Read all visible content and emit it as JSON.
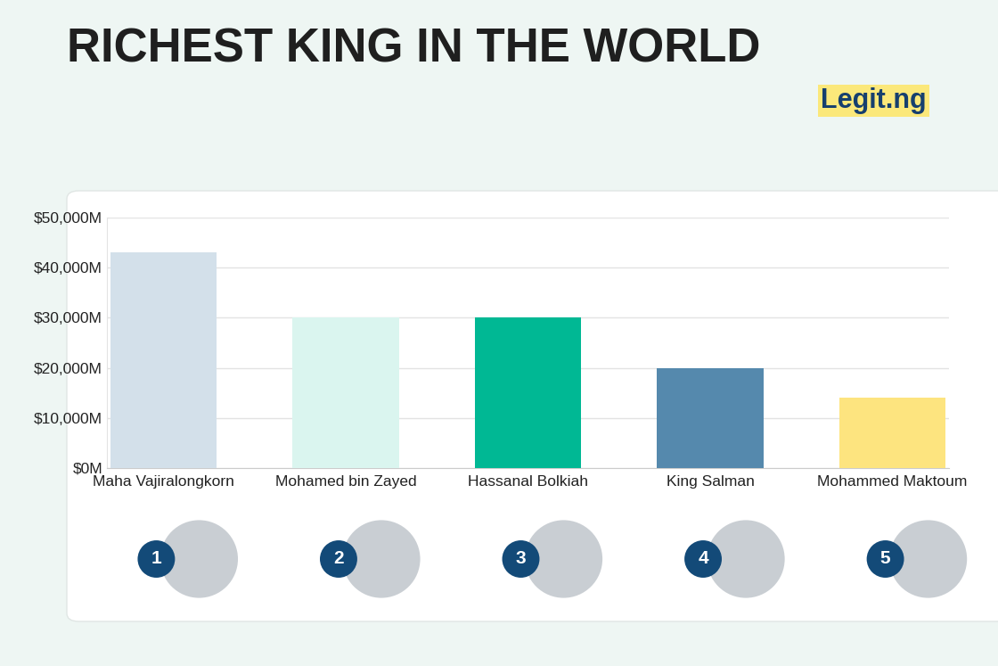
{
  "chart_data": {
    "type": "bar",
    "title": "RICHEST KING IN THE WORLD",
    "annotations": [
      "Legit.ng"
    ],
    "categories": [
      "Maha Vajiralongkorn",
      "Mohamed bin Zayed",
      "Hassanal Bolkiah",
      "King Salman",
      "Mohammed Maktoum"
    ],
    "values": [
      43000,
      30000,
      30000,
      20000,
      14000
    ],
    "ranks": [
      1,
      2,
      3,
      4,
      5
    ],
    "colors": [
      "#d3e0ea",
      "#daf5ef",
      "#00b894",
      "#5589ad",
      "#fde47f"
    ],
    "ylim": [
      0,
      50000
    ],
    "yticks": [
      {
        "value": 0,
        "label": "$0M"
      },
      {
        "value": 10000,
        "label": "$10,000M"
      },
      {
        "value": 20000,
        "label": "$20,000M"
      },
      {
        "value": 30000,
        "label": "$30,000M"
      },
      {
        "value": 40000,
        "label": "$40,000M"
      },
      {
        "value": 50000,
        "label": "$50,000M"
      }
    ],
    "grid": true
  }
}
